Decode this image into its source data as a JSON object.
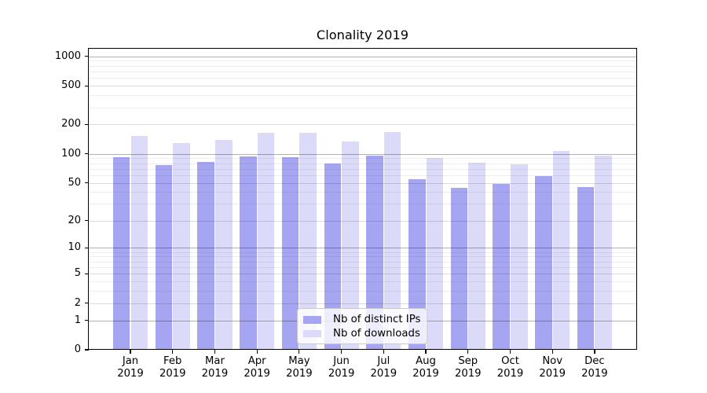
{
  "chart_data": {
    "type": "bar",
    "title": "Clonality 2019",
    "categories": [
      "Jan",
      "Feb",
      "Mar",
      "Apr",
      "May",
      "Jun",
      "Jul",
      "Aug",
      "Sep",
      "Oct",
      "Nov",
      "Dec"
    ],
    "year_label": "2019",
    "series": [
      {
        "name": "Nb of distinct IPs",
        "color": "#a5a5f2",
        "values": [
          93,
          77,
          82,
          94,
          92,
          80,
          96,
          55,
          44,
          49,
          59,
          45
        ]
      },
      {
        "name": "Nb of downloads",
        "color": "#dbdbf9",
        "values": [
          152,
          129,
          140,
          163,
          165,
          134,
          168,
          90,
          81,
          78,
          107,
          95
        ]
      }
    ],
    "y_axis": {
      "scale": "log1p",
      "ticks": [
        0,
        1,
        2,
        5,
        10,
        20,
        50,
        100,
        200,
        500,
        1000
      ],
      "range": [
        0,
        1250
      ]
    },
    "grid": "on",
    "legend_position": "lower center"
  }
}
